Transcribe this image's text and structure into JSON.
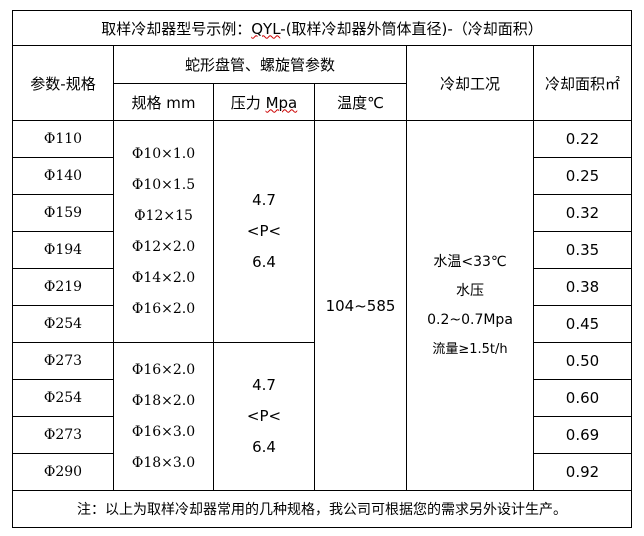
{
  "title": {
    "prefix": "取样冷却器型号示例：",
    "model": "QYL",
    "suffix": "-(取样冷却器外筒体直径)-（冷却面积）"
  },
  "headers": {
    "spec_param": "参数-规格",
    "coil_params": "蛇形盘管、螺旋管参数",
    "size_mm": "规格 mm",
    "pressure_label": "压力 ",
    "pressure_unit": "Mpa",
    "temperature": "温度℃",
    "cooling_condition": "冷却工况",
    "cooling_area": "冷却面积㎡"
  },
  "rows": [
    {
      "diameter": "Φ110",
      "area": "0.22"
    },
    {
      "diameter": "Φ140",
      "area": "0.25"
    },
    {
      "diameter": "Φ159",
      "area": "0.32"
    },
    {
      "diameter": "Φ194",
      "area": "0.35"
    },
    {
      "diameter": "Φ219",
      "area": "0.38"
    },
    {
      "diameter": "Φ254",
      "area": "0.45"
    },
    {
      "diameter": "Φ273",
      "area": "0.50"
    },
    {
      "diameter": "Φ254",
      "area": "0.60"
    },
    {
      "diameter": "Φ273",
      "area": "0.69"
    },
    {
      "diameter": "Φ290",
      "area": "0.92"
    }
  ],
  "groups": [
    {
      "sizes": [
        "Φ10×1.0",
        "Φ10×1.5",
        "Φ12×15",
        "Φ12×2.0",
        "Φ14×2.0",
        "Φ16×2.0"
      ],
      "pressure": [
        "4.7",
        "<P<",
        "6.4"
      ]
    },
    {
      "sizes": [
        "Φ16×2.0",
        "Φ18×2.0",
        "Φ16×3.0",
        "Φ18×3.0"
      ],
      "pressure": [
        "4.7",
        "<P<",
        "6.4"
      ]
    }
  ],
  "temperature_range": "104~585",
  "cooling_condition": [
    "水温<33℃",
    "水压",
    "0.2~0.7Mpa",
    "流量≥1.5t/h"
  ],
  "footer_note": "注：以上为取样冷却器常用的几种规格，我公司可根据您的需求另外设计生产。"
}
